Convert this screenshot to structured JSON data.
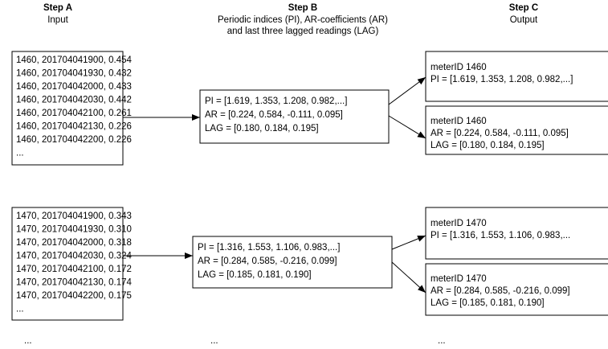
{
  "steps": [
    {
      "title": "Step A",
      "subtitle": [
        "Input"
      ]
    },
    {
      "title": "Step B",
      "subtitle": [
        "Periodic indices (PI), AR-coefficients (AR)",
        "and last three lagged readings (LAG)"
      ]
    },
    {
      "title": "Step C",
      "subtitle": [
        "Output"
      ]
    }
  ],
  "groups": [
    {
      "input": [
        "1460, 201704041900, 0.454",
        "1460, 201704041930, 0.432",
        "1460, 201704042000, 0.433",
        "1460, 201704042030, 0.442",
        "1460, 201704042100, 0.261",
        "1460, 201704042130, 0.226",
        "1460, 201704042200, 0.226",
        "..."
      ],
      "model": [
        "PI = [1.619, 1.353, 1.208, 0.982,...]",
        "AR = [0.224, 0.584, -0.111, 0.095]",
        "LAG = [0.180, 0.184, 0.195]"
      ],
      "outputs": [
        [
          "meterID 1460",
          "PI = [1.619, 1.353, 1.208, 0.982,...]"
        ],
        [
          "meterID 1460",
          "AR = [0.224, 0.584, -0.111, 0.095]",
          "LAG = [0.180, 0.184, 0.195]"
        ]
      ]
    },
    {
      "input": [
        "1470, 201704041900, 0.343",
        "1470, 201704041930, 0.310",
        "1470, 201704042000, 0.318",
        "1470, 201704042030, 0.324",
        "1470, 201704042100, 0.172",
        "1470, 201704042130, 0.174",
        "1470, 201704042200, 0.175",
        "..."
      ],
      "model": [
        "PI = [1.316, 1.553, 1.106, 0.983,...]",
        "AR = [0.284, 0.585, -0.216, 0.099]",
        "LAG = [0.185, 0.181, 0.190]"
      ],
      "outputs": [
        [
          "meterID 1470",
          "PI = [1.316, 1.553, 1.106, 0.983,..."
        ],
        [
          "meterID 1470",
          "AR = [0.284, 0.585, -0.216, 0.099]",
          "LAG = [0.185, 0.181, 0.190]"
        ]
      ]
    }
  ],
  "ellipsis": [
    "...",
    "...",
    "..."
  ]
}
